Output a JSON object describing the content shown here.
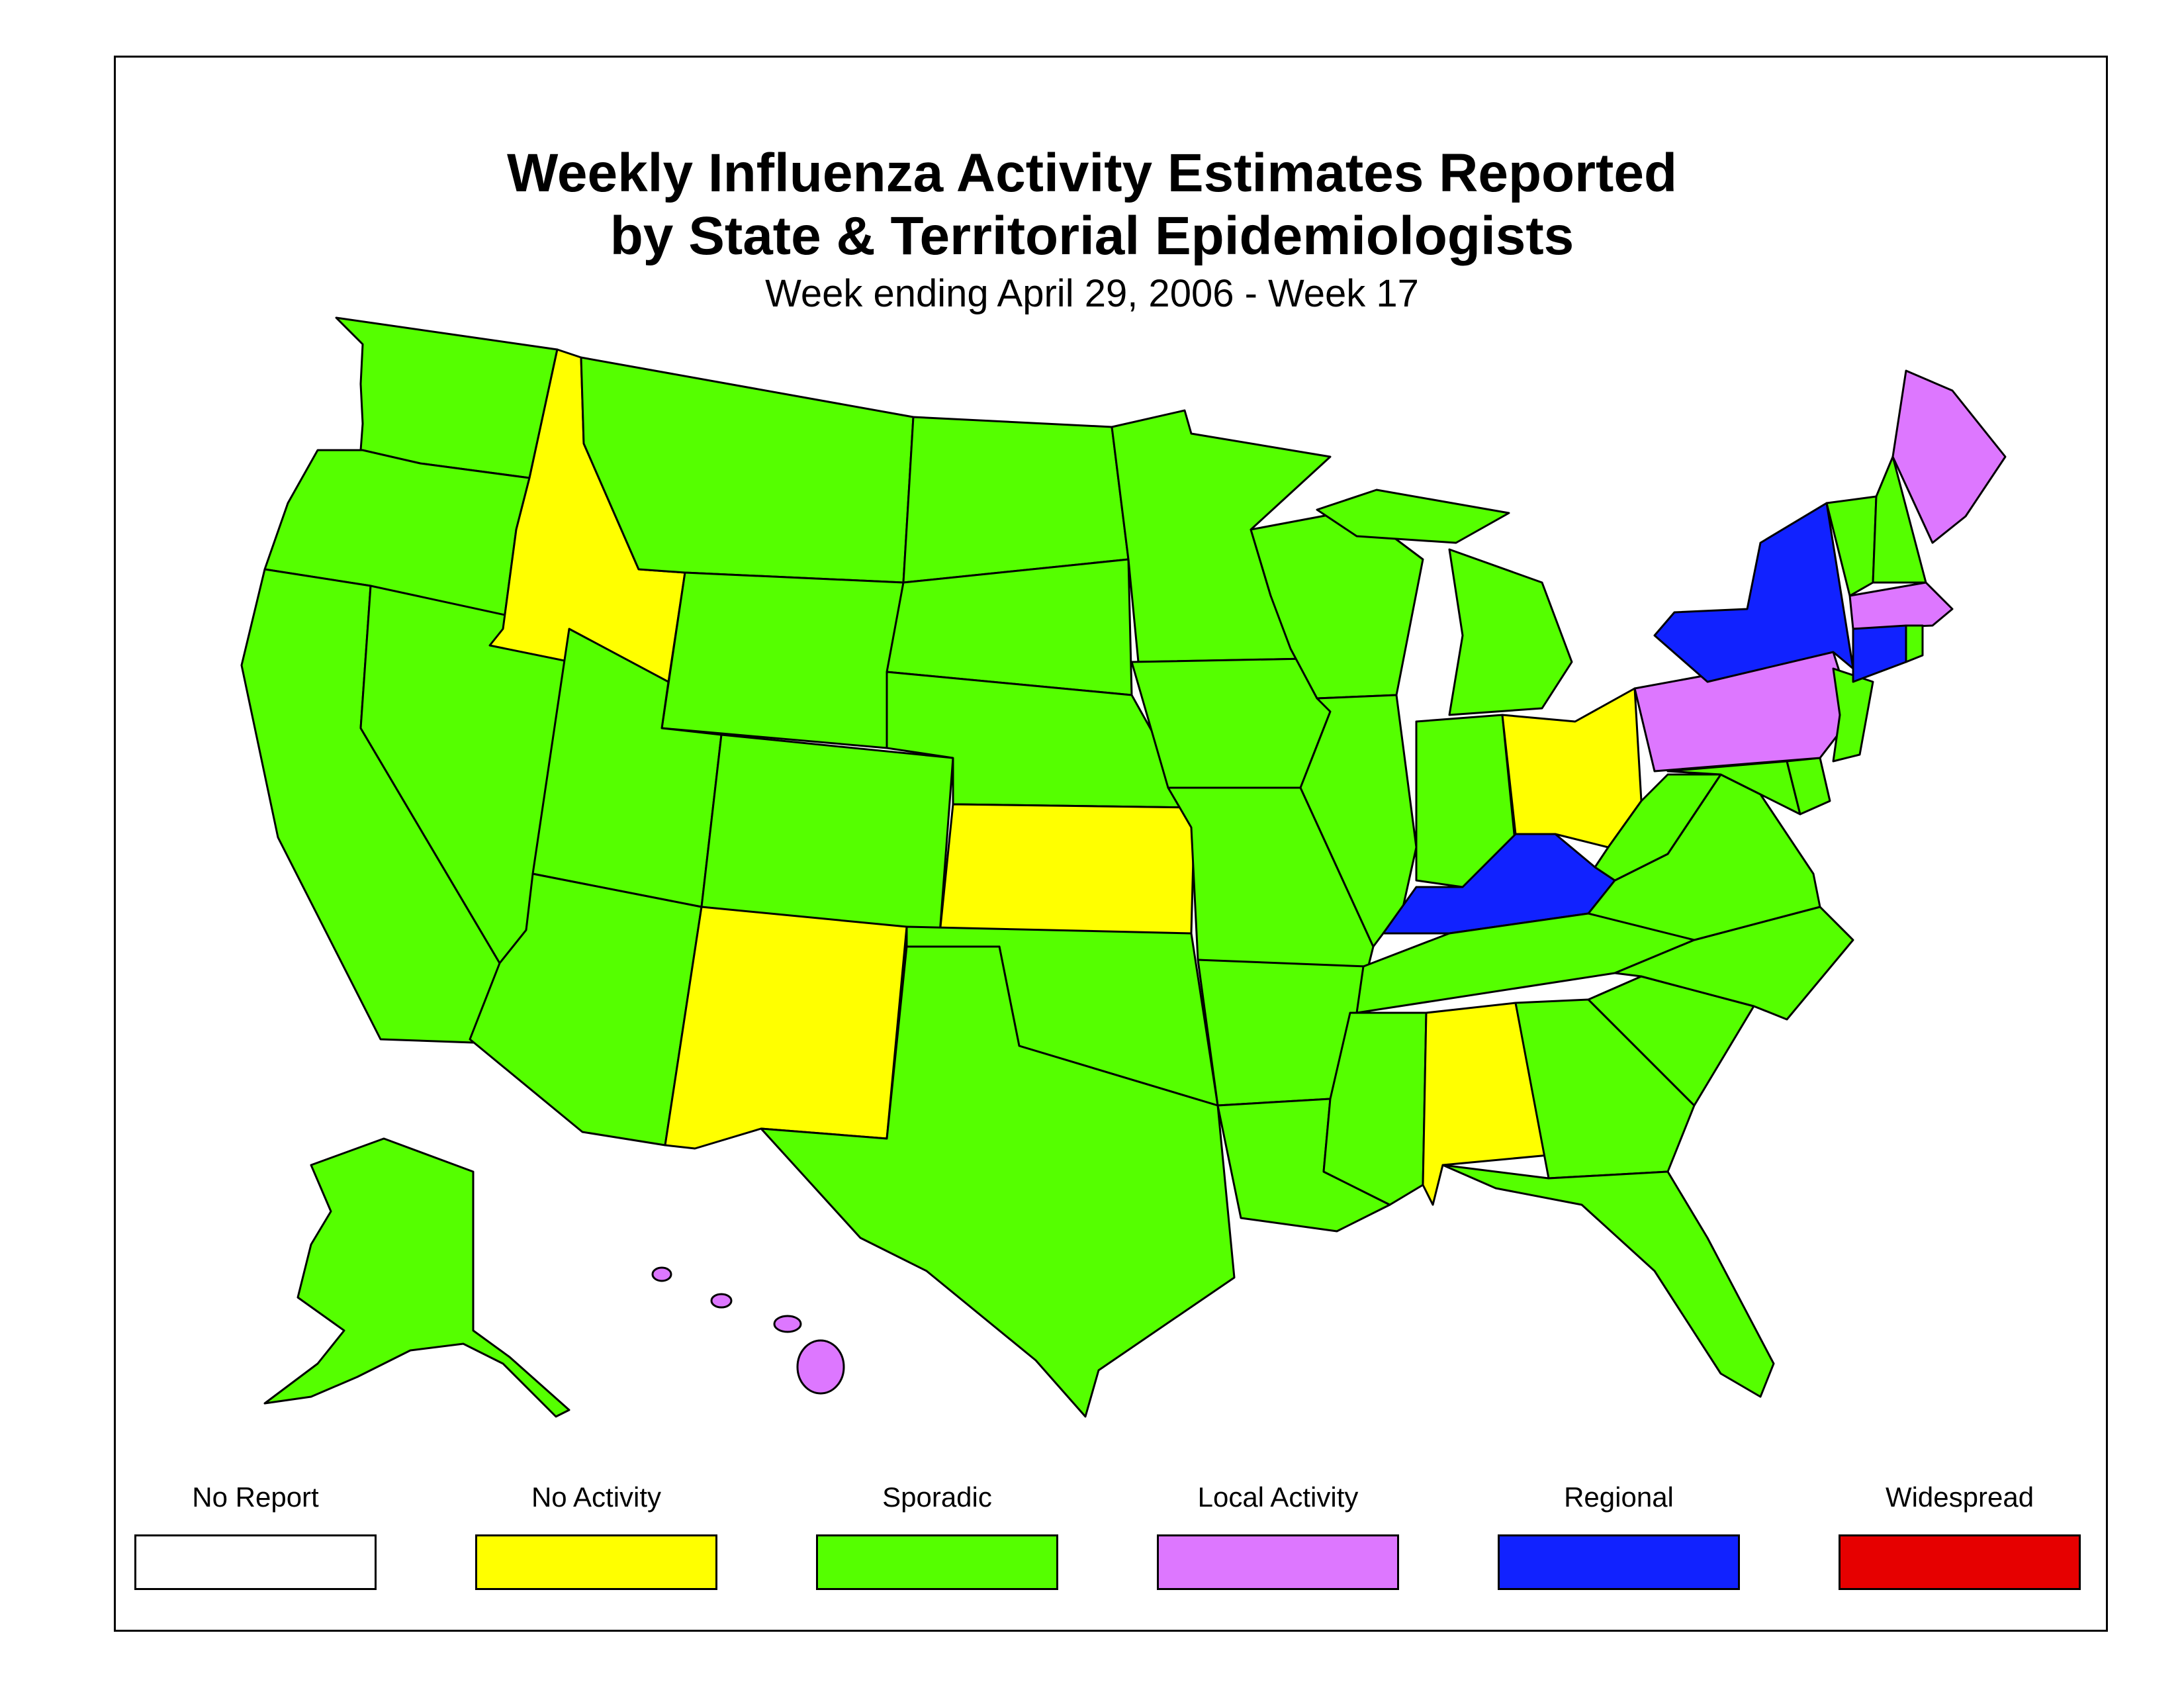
{
  "title_line1": "Weekly Influenza Activity Estimates Reported",
  "title_line2": "by State & Territorial Epidemiologists",
  "subtitle": "Week ending April 29, 2006 - Week 17",
  "legend": [
    {
      "label": "No Report",
      "color": "#ffffff"
    },
    {
      "label": "No Activity",
      "color": "#ffff00"
    },
    {
      "label": "Sporadic",
      "color": "#55ff00"
    },
    {
      "label": "Local Activity",
      "color": "#dd77ff"
    },
    {
      "label": "Regional",
      "color": "#1122ff"
    },
    {
      "label": "Widespread",
      "color": "#e60000"
    }
  ],
  "states": {
    "WA": "Sporadic",
    "OR": "Sporadic",
    "CA": "Sporadic",
    "NV": "Sporadic",
    "ID": "No Activity",
    "MT": "Sporadic",
    "WY": "Sporadic",
    "UT": "Sporadic",
    "AZ": "Sporadic",
    "CO": "Sporadic",
    "NM": "No Activity",
    "ND": "Sporadic",
    "SD": "Sporadic",
    "NE": "Sporadic",
    "KS": "No Activity",
    "OK": "Sporadic",
    "TX": "Sporadic",
    "MN": "Sporadic",
    "IA": "Sporadic",
    "MO": "Sporadic",
    "AR": "Sporadic",
    "LA": "Sporadic",
    "WI": "Sporadic",
    "IL": "Sporadic",
    "MI": "Sporadic",
    "IN": "Sporadic",
    "OH": "No Activity",
    "KY": "Regional",
    "TN": "Sporadic",
    "MS": "Sporadic",
    "AL": "No Activity",
    "GA": "Sporadic",
    "FL": "Sporadic",
    "SC": "Sporadic",
    "NC": "Sporadic",
    "VA": "Sporadic",
    "WV": "Sporadic",
    "MD": "Sporadic",
    "DE": "Sporadic",
    "NJ": "Sporadic",
    "PA": "Local Activity",
    "NY": "Regional",
    "VT": "Sporadic",
    "NH": "Sporadic",
    "ME": "Local Activity",
    "MA": "Local Activity",
    "CT": "Regional",
    "RI": "Sporadic",
    "AK": "Sporadic",
    "HI": "Local Activity"
  }
}
